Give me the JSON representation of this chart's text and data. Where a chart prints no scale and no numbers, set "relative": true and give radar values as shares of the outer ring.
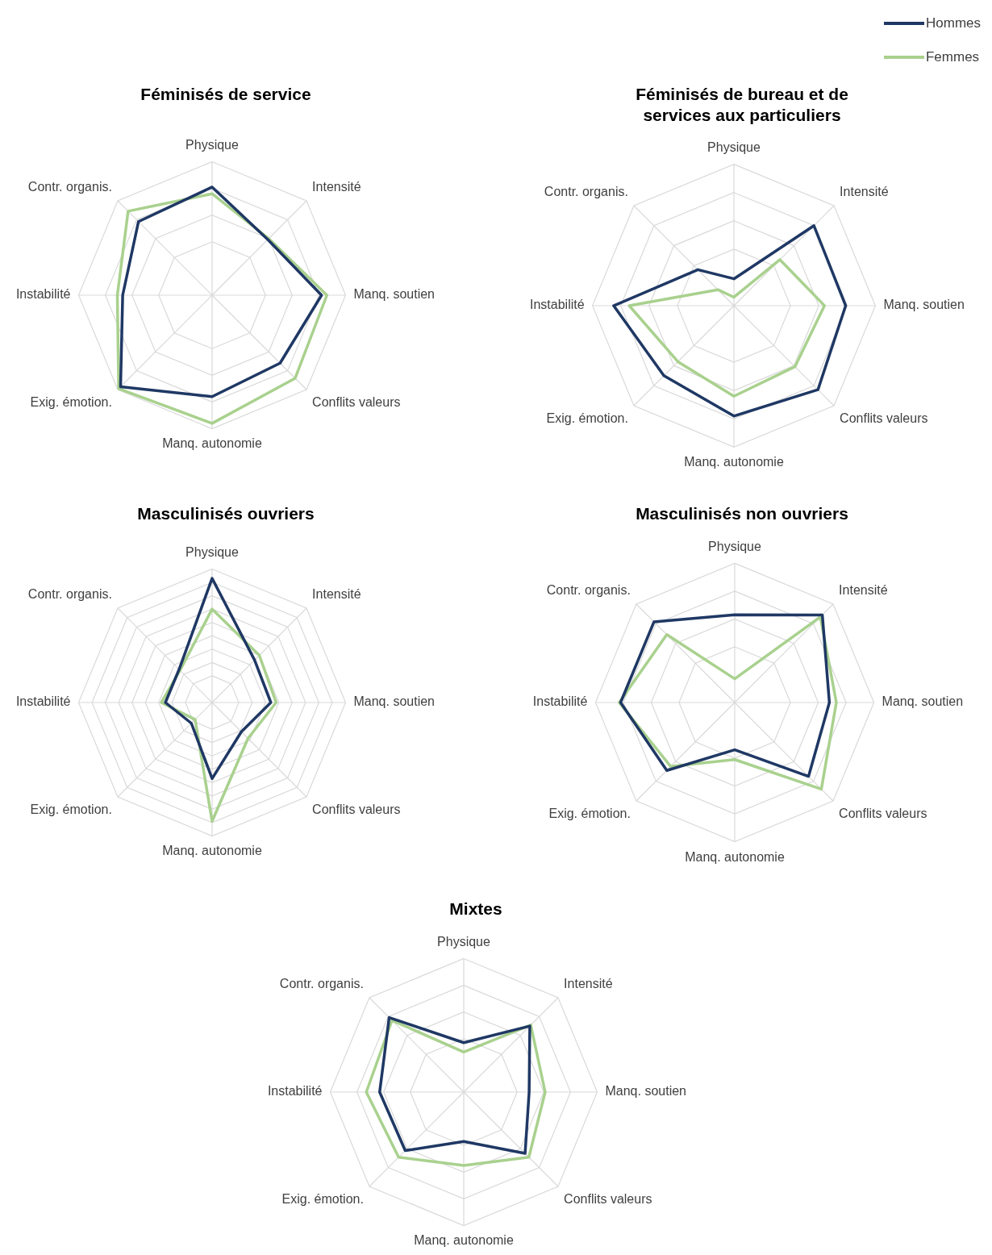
{
  "chart_data": [
    {
      "type": "radar",
      "title": "Féminisés de service",
      "categories": [
        "Physique",
        "Intensité",
        "Manq. soutien",
        "Conflits valeurs",
        "Manq. autonomie",
        "Exig. émotion.",
        "Instabilité",
        "Contr. organis."
      ],
      "relative": true,
      "grid": true,
      "marker": "none",
      "legend": "top right",
      "series": [
        {
          "name": "Hommes",
          "color": "#1f3864",
          "values": [
            0.81,
            0.59,
            0.82,
            0.72,
            0.76,
            0.97,
            0.67,
            0.78
          ]
        },
        {
          "name": "Femmes",
          "color": "#a9d18e",
          "values": [
            0.76,
            0.6,
            0.86,
            0.88,
            0.96,
            0.99,
            0.71,
            0.89
          ]
        }
      ]
    },
    {
      "type": "radar",
      "title": "Féminisés de bureau et de services aux particuliers",
      "categories": [
        "Physique",
        "Intensité",
        "Manq. soutien",
        "Conflits valeurs",
        "Manq. autonomie",
        "Exig. émotion.",
        "Instabilité",
        "Contr. organis."
      ],
      "relative": true,
      "grid": true,
      "marker": "none",
      "series": [
        {
          "color": "#1f3864",
          "values": [
            0.19,
            0.8,
            0.79,
            0.84,
            0.78,
            0.7,
            0.85,
            0.36
          ]
        },
        {
          "color": "#a9d18e",
          "values": [
            0.06,
            0.46,
            0.64,
            0.61,
            0.64,
            0.56,
            0.74,
            0.16
          ]
        }
      ]
    },
    {
      "type": "radar",
      "title": "Masculinisés ouvriers",
      "categories": [
        "Physique",
        "Intensité",
        "Manq. soutien",
        "Conflits valeurs",
        "Manq. autonomie",
        "Exig. émotion.",
        "Instabilité",
        "Contr. organis."
      ],
      "relative": true,
      "grid": true,
      "marker": "none",
      "series": [
        {
          "color": "#1f3864",
          "values": [
            0.93,
            0.45,
            0.44,
            0.31,
            0.57,
            0.22,
            0.35,
            0.35
          ]
        },
        {
          "color": "#a9d18e",
          "values": [
            0.7,
            0.5,
            0.48,
            0.38,
            0.89,
            0.18,
            0.38,
            0.34
          ]
        }
      ]
    },
    {
      "type": "radar",
      "title": "Masculinisés non ouvriers",
      "categories": [
        "Physique",
        "Intensité",
        "Manq. soutien",
        "Conflits valeurs",
        "Manq. autonomie",
        "Exig. émotion.",
        "Instabilité",
        "Contr. organis."
      ],
      "relative": true,
      "grid": true,
      "marker": "none",
      "series": [
        {
          "color": "#1f3864",
          "values": [
            0.63,
            0.89,
            0.68,
            0.75,
            0.34,
            0.69,
            0.82,
            0.82
          ]
        },
        {
          "color": "#a9d18e",
          "values": [
            0.17,
            0.87,
            0.73,
            0.88,
            0.41,
            0.65,
            0.83,
            0.69
          ]
        }
      ]
    },
    {
      "type": "radar",
      "title": "Mixtes",
      "categories": [
        "Physique",
        "Intensité",
        "Manq. soutien",
        "Conflits valeurs",
        "Manq. autonomie",
        "Exig. émotion.",
        "Instabilité",
        "Contr. organis."
      ],
      "relative": true,
      "grid": true,
      "marker": "none",
      "series": [
        {
          "color": "#1f3864",
          "values": [
            0.37,
            0.7,
            0.49,
            0.65,
            0.37,
            0.62,
            0.63,
            0.79
          ]
        },
        {
          "color": "#a9d18e",
          "values": [
            0.3,
            0.71,
            0.61,
            0.69,
            0.55,
            0.69,
            0.73,
            0.76
          ]
        }
      ]
    }
  ]
}
